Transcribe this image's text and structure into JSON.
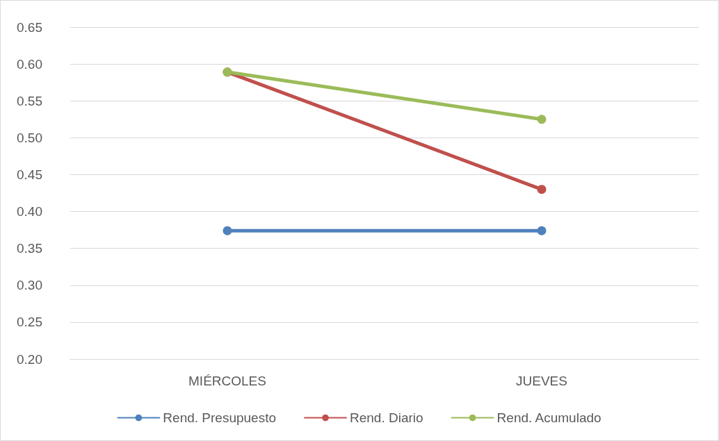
{
  "chart_data": {
    "type": "line",
    "categories": [
      "MIÉRCOLES",
      "JUEVES"
    ],
    "series": [
      {
        "name": "Rend. Presupuesto",
        "color": "#4f81bd",
        "values": [
          0.374,
          0.374
        ]
      },
      {
        "name": "Rend. Diario",
        "color": "#c0504d",
        "values": [
          0.589,
          0.43
        ]
      },
      {
        "name": "Rend. Acumulado",
        "color": "#9bbb59",
        "values": [
          0.589,
          0.525
        ]
      }
    ],
    "ylim": [
      0.2,
      0.65
    ],
    "yticks": [
      {
        "value": 0.2,
        "label": "0.20"
      },
      {
        "value": 0.25,
        "label": "0.25"
      },
      {
        "value": 0.3,
        "label": "0.30"
      },
      {
        "value": 0.35,
        "label": "0.35"
      },
      {
        "value": 0.4,
        "label": "0.40"
      },
      {
        "value": 0.45,
        "label": "0.45"
      },
      {
        "value": 0.5,
        "label": "0.50"
      },
      {
        "value": 0.55,
        "label": "0.55"
      },
      {
        "value": 0.6,
        "label": "0.60"
      },
      {
        "value": 0.65,
        "label": "0.65"
      }
    ],
    "grid": "y",
    "legend": "bottom",
    "marker": "circle",
    "line_style": "solid"
  }
}
